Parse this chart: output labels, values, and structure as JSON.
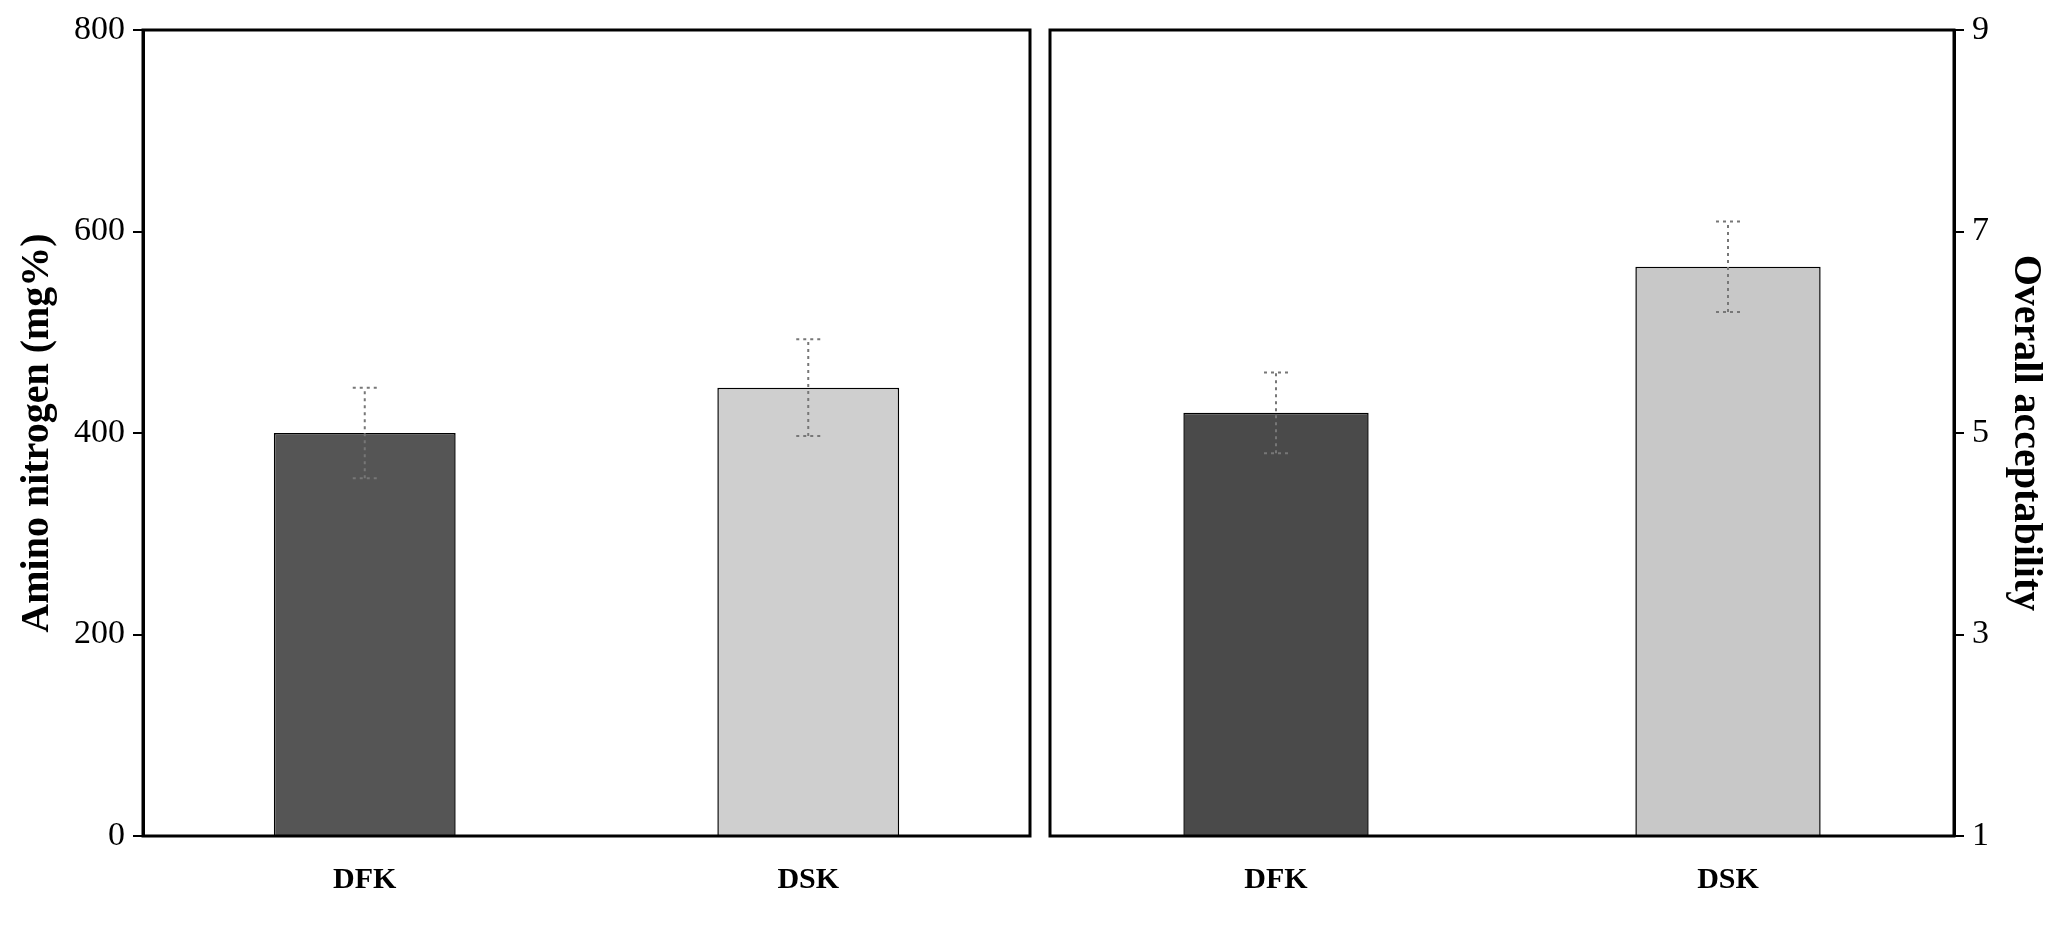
{
  "chart_data": [
    {
      "type": "bar",
      "ylabel": "Amino nitrogen (mg%)",
      "categories": [
        "DFK",
        "DSK"
      ],
      "series": [
        {
          "colors": [
            "#555555",
            "#cfcfcf"
          ],
          "values": [
            400,
            445
          ],
          "errors": [
            45,
            48
          ]
        }
      ],
      "ylim": [
        0,
        800
      ],
      "yticks": [
        0,
        200,
        400,
        600,
        800
      ],
      "grid": false,
      "legend": false
    },
    {
      "type": "bar",
      "y2label": "Overall acceptability",
      "categories": [
        "DFK",
        "DSK"
      ],
      "series": [
        {
          "colors": [
            "#4a4a4a",
            "#c8c8c8"
          ],
          "values": [
            5.2,
            6.65
          ],
          "errors": [
            0.4,
            0.45
          ],
          "axis": "y2"
        }
      ],
      "y2lim": [
        1,
        9
      ],
      "y2ticks": [
        1,
        3,
        5,
        7,
        9
      ],
      "grid": false,
      "legend": false
    }
  ]
}
